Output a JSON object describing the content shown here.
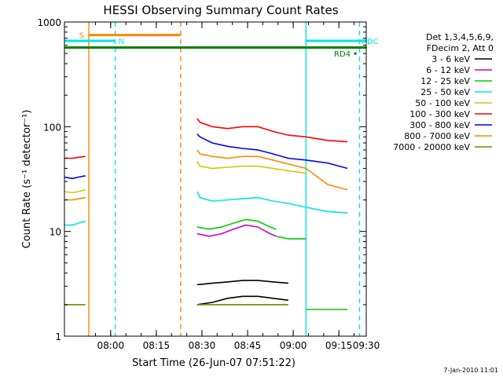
{
  "chart_data": {
    "type": "line",
    "title": "HESSI Observing Summary Count Rates",
    "xlabel": "Start Time (26-Jun-07 07:51:22)",
    "ylabel": "Count Rate (s⁻¹ detector⁻¹)",
    "footer_date": "7-Jan-2010 11:01",
    "y_scale": "log",
    "ylim": [
      1,
      1000
    ],
    "xlim_minutes": [
      -6.6,
      92.6
    ],
    "y_ticks": [
      {
        "value": 1,
        "label": "1"
      },
      {
        "value": 10,
        "label": "10"
      },
      {
        "value": 100,
        "label": "100"
      },
      {
        "value": 1000,
        "label": "1000"
      }
    ],
    "x_ticks": [
      {
        "value": 8.6,
        "label": "08:00"
      },
      {
        "value": 23.6,
        "label": "08:15"
      },
      {
        "value": 38.6,
        "label": "08:30"
      },
      {
        "value": 53.6,
        "label": "08:45"
      },
      {
        "value": 68.6,
        "label": "09:00"
      },
      {
        "value": 83.6,
        "label": "09:15"
      },
      {
        "value": 98.6,
        "label": "09:30"
      }
    ],
    "legend": {
      "header": [
        "Det 1,3,4,5,6,9,",
        "FDecim 2, Att 0"
      ],
      "placement": "right"
    },
    "series": [
      {
        "name": "3 - 6 keV",
        "color": "#000000",
        "segments": [
          {
            "x": [
              37.0,
              42,
              47,
              52,
              57,
              62,
              67
            ],
            "y": [
              3.1,
              3.2,
              3.3,
              3.4,
              3.4,
              3.3,
              3.2
            ]
          },
          {
            "x": [
              37.0,
              42,
              47,
              52,
              57,
              62,
              67
            ],
            "y": [
              2.0,
              2.1,
              2.3,
              2.4,
              2.4,
              2.3,
              2.2
            ]
          }
        ]
      },
      {
        "name": "6 - 12 keV",
        "color": "#cc00cc",
        "segments": [
          {
            "x": [
              37.0,
              41,
              45,
              49,
              53,
              57,
              61,
              63
            ],
            "y": [
              9.5,
              9.0,
              9.5,
              10.5,
              11.5,
              11.0,
              9.5,
              9.0
            ]
          }
        ]
      },
      {
        "name": "12 - 25 keV",
        "color": "#00cc00",
        "segments": [
          {
            "x": [
              37.0,
              41,
              45,
              49,
              53,
              57,
              61,
              63
            ],
            "y": [
              11.0,
              10.5,
              11.0,
              12.0,
              13.0,
              12.5,
              11.0,
              10.5
            ]
          },
          {
            "x": [
              63,
              67,
              71,
              72.8
            ],
            "y": [
              9.0,
              8.5,
              8.5,
              8.5
            ]
          },
          {
            "x": [
              72.8,
              80,
              86.4
            ],
            "y": [
              1.8,
              1.8,
              1.8
            ]
          }
        ]
      },
      {
        "name": "25 - 50 keV",
        "color": "#00e5e5",
        "segments": [
          {
            "x": [
              -6.6,
              -4,
              -2,
              0.3
            ],
            "y": [
              11.5,
              11.5,
              12.0,
              12.5
            ]
          },
          {
            "x": [
              37.0,
              38,
              42,
              47,
              52,
              57,
              62,
              67,
              72.8,
              80,
              86.4
            ],
            "y": [
              24,
              21,
              19.5,
              20,
              20.5,
              21,
              19.5,
              18.5,
              17,
              15.5,
              15
            ]
          }
        ]
      },
      {
        "name": "50 - 100 keV",
        "color": "#cccc00",
        "segments": [
          {
            "x": [
              -6.6,
              -4,
              -2,
              0.3
            ],
            "y": [
              24,
              23.5,
              24,
              25
            ]
          },
          {
            "x": [
              37.0,
              38,
              42,
              47,
              52,
              57,
              62,
              67,
              72.8
            ],
            "y": [
              47,
              42,
              40,
              41,
              42,
              42,
              40,
              38,
              36
            ]
          }
        ]
      },
      {
        "name": "100 - 300 keV",
        "color": "#ff0000",
        "segments": [
          {
            "x": [
              -6.6,
              -4,
              -2,
              0.3
            ],
            "y": [
              50,
              50,
              51,
              52
            ]
          },
          {
            "x": [
              37.0,
              38,
              42,
              47,
              52,
              57,
              62,
              67,
              72.8,
              80,
              86.4
            ],
            "y": [
              120,
              110,
              100,
              96,
              100,
              100,
              90,
              83,
              80,
              74,
              72
            ]
          }
        ]
      },
      {
        "name": "300 - 800 keV",
        "color": "#0000ee",
        "segments": [
          {
            "x": [
              -6.6,
              -4,
              -2,
              0.3
            ],
            "y": [
              33,
              32,
              33,
              34
            ]
          },
          {
            "x": [
              37.0,
              38,
              42,
              47,
              52,
              57,
              62,
              67,
              72.8,
              80,
              86.4
            ],
            "y": [
              85,
              80,
              70,
              65,
              62,
              60,
              55,
              50,
              48,
              45,
              40
            ]
          }
        ]
      },
      {
        "name": "800 - 7000 keV",
        "color": "#ff8800",
        "segments": [
          {
            "x": [
              -6.6,
              -4,
              -2,
              0.3
            ],
            "y": [
              20,
              20,
              20.5,
              21
            ]
          },
          {
            "x": [
              37.0,
              38,
              42,
              47,
              52,
              57,
              62,
              67,
              72.8,
              80,
              86.4
            ],
            "y": [
              60,
              55,
              52,
              50,
              52,
              52,
              48,
              44,
              40,
              28,
              25
            ]
          }
        ]
      },
      {
        "name": "7000 - 20000 keV",
        "color": "#808000",
        "segments": [
          {
            "x": [
              -6.6,
              -4,
              -2,
              0.3
            ],
            "y": [
              2.0,
              2.0,
              2.0,
              2.0
            ]
          },
          {
            "x": [
              37.0,
              42,
              47,
              52,
              57,
              62,
              67
            ],
            "y": [
              2.0,
              2.0,
              2.0,
              2.0,
              2.0,
              2.0,
              2.0
            ]
          }
        ]
      }
    ],
    "vertical_lines": [
      {
        "x": 1.4,
        "color": "#ff8800",
        "dash": false
      },
      {
        "x": 31.6,
        "color": "#ff8800",
        "dash": true
      },
      {
        "x": 10.1,
        "color": "#00e5e5",
        "dash": true
      },
      {
        "x": 72.8,
        "color": "#00e5e5",
        "dash": false
      },
      {
        "x": 90.4,
        "color": "#00e5e5",
        "dash": true
      }
    ],
    "flag_bars": [
      {
        "label": "S",
        "color": "#ff8800",
        "x_start": 1.4,
        "x_end": 31.6,
        "y": 750,
        "label_side": "left"
      },
      {
        "label": "N",
        "color": "#00e5e5",
        "x_start": -6.6,
        "x_end": 10.1,
        "y": 660,
        "label_side": "right"
      },
      {
        "label": "RDC",
        "color": "#00e5e5",
        "x_start": 72.8,
        "x_end": 92.6,
        "y": 660,
        "label_side": "right"
      },
      {
        "label": "",
        "color": "#008000",
        "x_start": -6.6,
        "x_end": 92.6,
        "y": 570,
        "label_side": "none"
      }
    ],
    "markers": [
      {
        "label": "RD4",
        "color": "#008000",
        "x": 89.0,
        "y": 500
      }
    ]
  }
}
